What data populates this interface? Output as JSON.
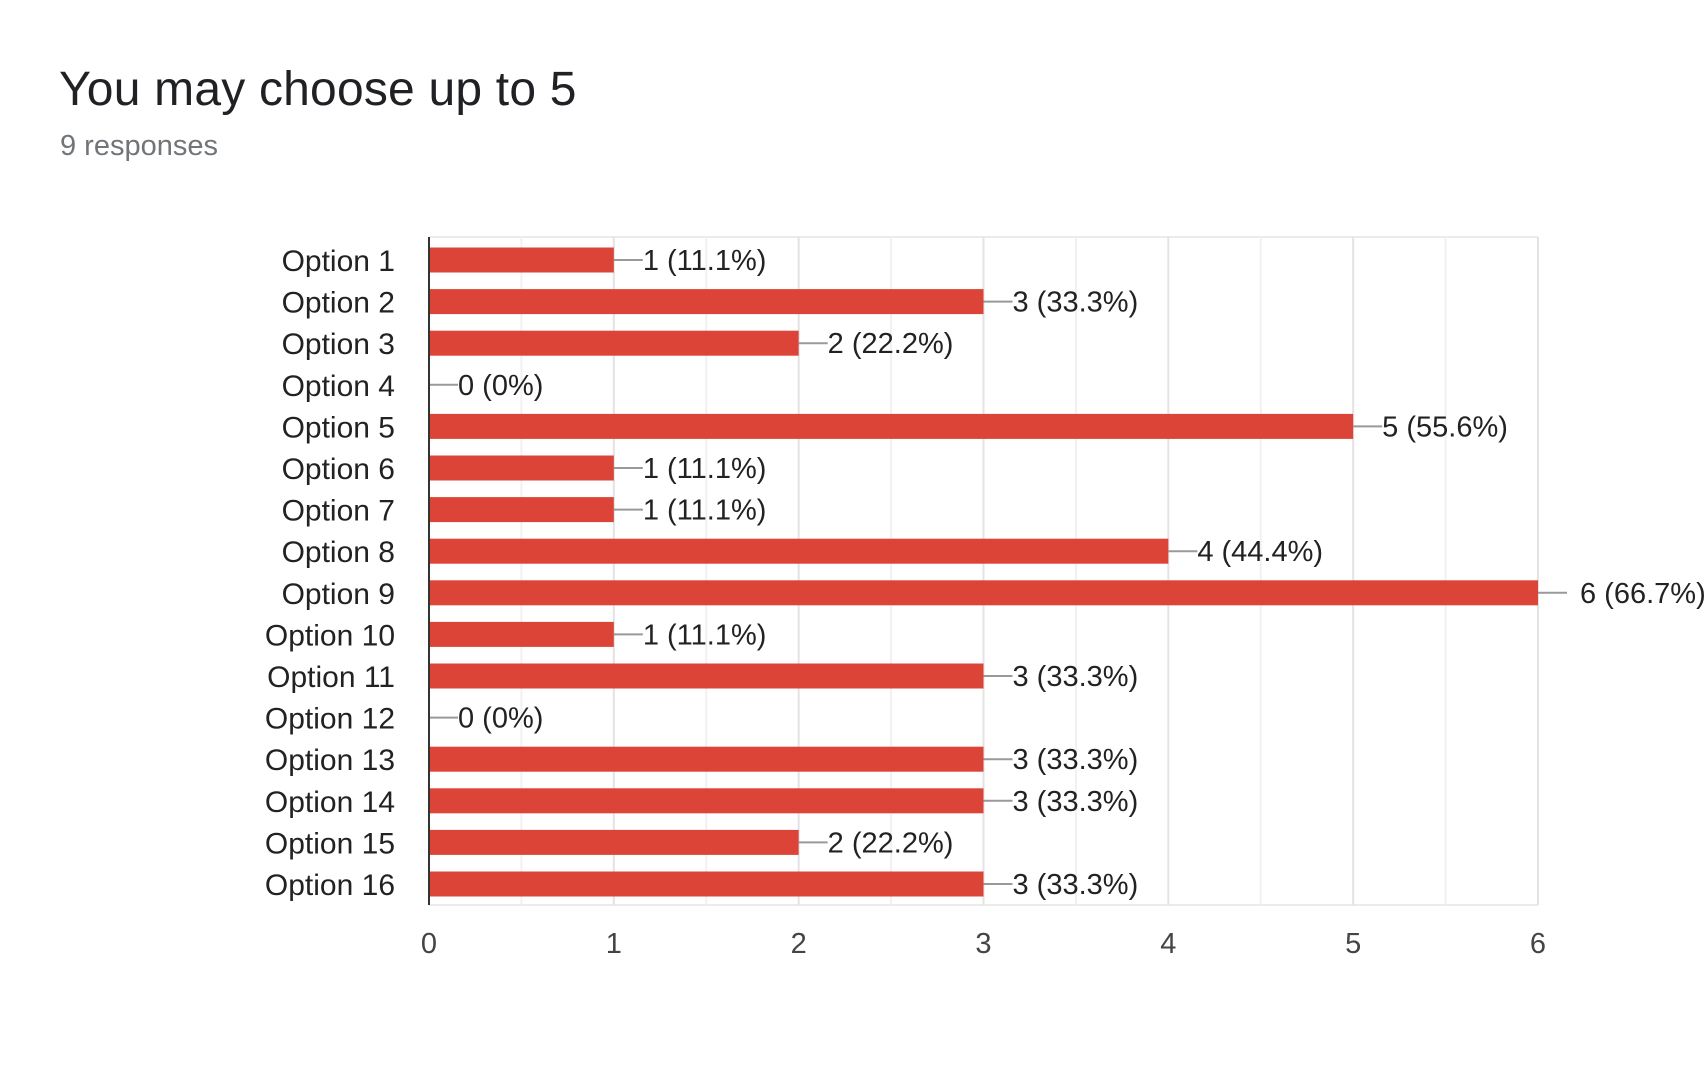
{
  "header": {
    "title": "You may choose up to 5",
    "subtitle": "9 responses"
  },
  "colors": {
    "bar": "#db4437",
    "grid": "#ebebeb",
    "axis": "#333333",
    "leader": "#999999"
  },
  "chart_data": {
    "type": "bar",
    "orientation": "horizontal",
    "categories": [
      "Option 1",
      "Option 2",
      "Option 3",
      "Option 4",
      "Option 5",
      "Option 6",
      "Option 7",
      "Option 8",
      "Option 9",
      "Option 10",
      "Option 11",
      "Option 12",
      "Option 13",
      "Option 14",
      "Option 15",
      "Option 16"
    ],
    "values": [
      1,
      3,
      2,
      0,
      5,
      1,
      1,
      4,
      6,
      1,
      3,
      0,
      3,
      3,
      2,
      3
    ],
    "data_labels": [
      "1 (11.1%)",
      "3 (33.3%)",
      "2 (22.2%)",
      "0 (0%)",
      "5 (55.6%)",
      "1 (11.1%)",
      "1 (11.1%)",
      "4 (44.4%)",
      "6 (66.7%)",
      "1 (11.1%)",
      "3 (33.3%)",
      "0 (0%)",
      "3 (33.3%)",
      "3 (33.3%)",
      "2 (22.2%)",
      "3 (33.3%)"
    ],
    "xlim": [
      0,
      6
    ],
    "xticks": [
      "0",
      "1",
      "2",
      "3",
      "4",
      "5",
      "6"
    ],
    "minor_grid_step": 0.5,
    "grid": true,
    "legend": "none"
  }
}
